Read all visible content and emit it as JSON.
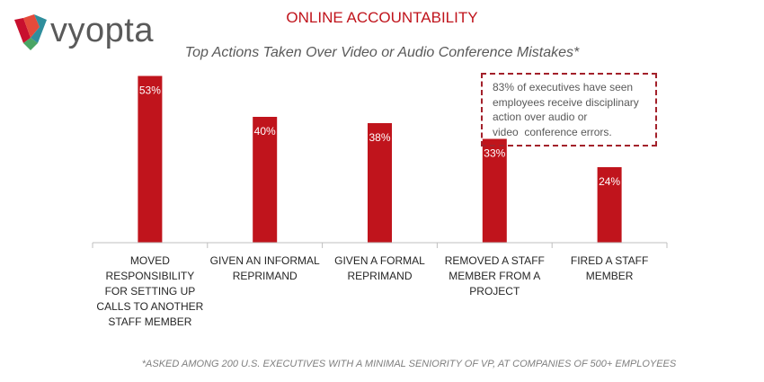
{
  "brand": {
    "name": "vyopta",
    "colors": {
      "red": "#c8102e",
      "teal": "#2f8e9c",
      "green": "#4aa564"
    }
  },
  "header": {
    "title": "ONLINE ACCOUNTABILITY"
  },
  "callout": {
    "lines": [
      "83% of executives have seen",
      "employees receive disciplinary",
      "action over audio or",
      "video  conference errors."
    ]
  },
  "footnote": "*ASKED AMONG 200 U.S. EXECUTIVES WITH A MINIMAL SENIORITY OF VP, AT COMPANIES OF 500+ EMPLOYEES",
  "chart_data": {
    "type": "bar",
    "title": "Top Actions Taken Over Video or Audio Conference Mistakes*",
    "categories": [
      [
        "MOVED",
        "RESPONSIBILITY",
        "FOR SETTING UP",
        "CALLS TO ANOTHER",
        "STAFF MEMBER"
      ],
      [
        "GIVEN AN INFORMAL",
        "REPRIMAND"
      ],
      [
        "GIVEN A FORMAL",
        "REPRIMAND"
      ],
      [
        "REMOVED A STAFF",
        "MEMBER FROM A",
        "PROJECT"
      ],
      [
        "FIRED A STAFF",
        "MEMBER"
      ]
    ],
    "values": [
      53,
      40,
      38,
      33,
      24
    ],
    "data_labels": [
      "53%",
      "40%",
      "38%",
      "33%",
      "24%"
    ],
    "xlabel": "",
    "ylabel": "",
    "ylim": [
      0,
      60
    ],
    "grid": false,
    "bar_color": "#c0141c"
  }
}
